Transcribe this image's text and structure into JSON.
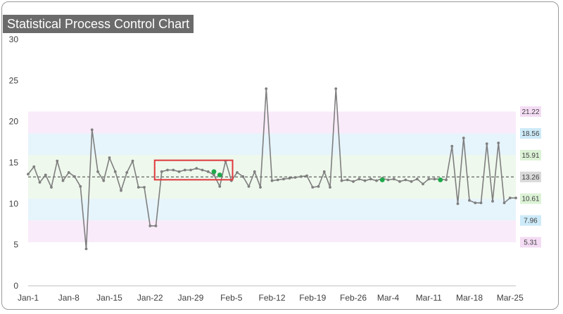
{
  "chart_data": {
    "type": "line",
    "title": "Statistical Process Control Chart",
    "ylim": [
      0,
      30
    ],
    "yticks": [
      0,
      5,
      10,
      15,
      20,
      25,
      30
    ],
    "xtick_labels": [
      "Jan-1",
      "Jan-8",
      "Jan-15",
      "Jan-22",
      "Jan-29",
      "Feb-5",
      "Feb-12",
      "Feb-19",
      "Feb-26",
      "Mar-4",
      "Mar-11",
      "Mar-18",
      "Mar-25"
    ],
    "x_start": "Jan-1",
    "values": [
      13.6,
      14.5,
      12.6,
      13.5,
      12.0,
      15.2,
      12.8,
      13.8,
      13.3,
      12.1,
      4.5,
      19.0,
      13.9,
      12.8,
      15.6,
      13.9,
      11.6,
      13.8,
      15.2,
      12.0,
      12.0,
      7.3,
      7.3,
      13.9,
      14.1,
      14.1,
      13.9,
      14.1,
      14.1,
      14.3,
      14.1,
      13.9,
      13.5,
      12.1,
      15.2,
      12.8,
      13.8,
      13.3,
      12.1,
      13.9,
      12.0,
      24.0,
      12.8,
      12.9,
      13.0,
      13.1,
      13.2,
      13.3,
      13.4,
      12.0,
      12.1,
      13.9,
      12.0,
      24.0,
      12.8,
      12.9,
      12.7,
      13.0,
      12.8,
      13.0,
      12.8,
      13.1,
      12.9,
      13.0,
      12.7,
      12.9,
      12.7,
      13.0,
      12.4,
      13.0,
      13.0,
      13.0,
      12.9,
      17.0,
      10.0,
      18.0,
      10.4,
      10.1,
      10.1,
      17.3,
      10.3,
      17.4,
      10.1,
      10.7,
      10.7
    ],
    "highlight_points": [
      {
        "x": "Feb-2",
        "y": 13.9
      },
      {
        "x": "Feb-3",
        "y": 13.5
      },
      {
        "x": "Mar-3",
        "y": 12.9
      },
      {
        "x": "Mar-13",
        "y": 12.9
      }
    ],
    "highlight_box": {
      "from": "Jan-24",
      "to": "Feb-4"
    },
    "center_line": 13.26,
    "limits": [
      {
        "value": 21.22,
        "label": "21.22",
        "color": "#f4dcf4"
      },
      {
        "value": 18.56,
        "label": "18.56",
        "color": "#cdeaf8"
      },
      {
        "value": 15.91,
        "label": "15.91",
        "color": "#dcf2d6"
      },
      {
        "value": 13.26,
        "label": "13.26",
        "color": "#d9d9d9"
      },
      {
        "value": 10.61,
        "label": "10.61",
        "color": "#dcf2d6"
      },
      {
        "value": 7.96,
        "label": "7.96",
        "color": "#cdeaf8"
      },
      {
        "value": 5.31,
        "label": "5.31",
        "color": "#f4dcf4"
      }
    ],
    "bands": [
      {
        "from": 18.56,
        "to": 21.22,
        "color": "#f9ebf9"
      },
      {
        "from": 15.91,
        "to": 18.56,
        "color": "#e6f4fb"
      },
      {
        "from": 10.61,
        "to": 15.91,
        "color": "#eef8ec"
      },
      {
        "from": 7.96,
        "to": 10.61,
        "color": "#e6f4fb"
      },
      {
        "from": 5.31,
        "to": 7.96,
        "color": "#f9ebf9"
      }
    ],
    "line_color": "#7f7f7f",
    "highlight_color": "#1ea84a",
    "box_color": "#e0393e",
    "grid": false
  }
}
